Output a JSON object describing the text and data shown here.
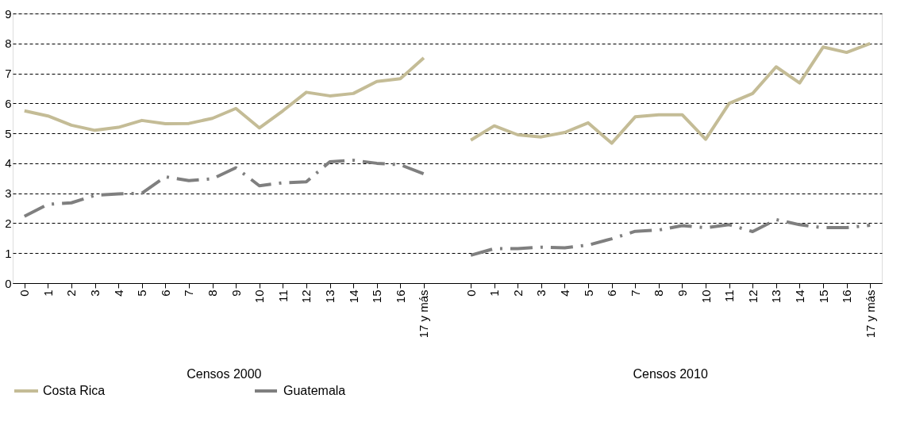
{
  "chart_data": {
    "type": "line",
    "categories": [
      "0",
      "1",
      "2",
      "3",
      "4",
      "5",
      "6",
      "7",
      "8",
      "9",
      "10",
      "11",
      "12",
      "13",
      "14",
      "15",
      "16",
      "17 y más",
      null,
      "0",
      "1",
      "2",
      "3",
      "4",
      "5",
      "6",
      "7",
      "8",
      "9",
      "10",
      "11",
      "12",
      "13",
      "14",
      "15",
      "16",
      "17 y más"
    ],
    "series": [
      {
        "name": "Costa Rica",
        "color": "#c4bc96",
        "line_style": "solid",
        "values": [
          5.75,
          5.58,
          5.27,
          5.1,
          5.2,
          5.43,
          5.32,
          5.33,
          5.5,
          5.83,
          5.18,
          5.75,
          6.37,
          6.25,
          6.33,
          6.73,
          6.82,
          7.52,
          null,
          4.77,
          5.25,
          4.95,
          4.88,
          5.03,
          5.35,
          4.67,
          5.55,
          5.62,
          5.62,
          4.8,
          6.0,
          6.33,
          7.22,
          6.68,
          7.88,
          7.7,
          8.0
        ]
      },
      {
        "name": "Guatemala",
        "color": "#7f7f7f",
        "line_style": "dashed",
        "values": [
          2.23,
          2.63,
          2.68,
          2.93,
          2.98,
          3.0,
          3.55,
          3.42,
          3.48,
          3.85,
          3.25,
          3.35,
          3.38,
          4.05,
          4.1,
          4.0,
          3.95,
          3.65,
          null,
          0.93,
          1.15,
          1.15,
          1.2,
          1.18,
          1.27,
          1.48,
          1.73,
          1.77,
          1.92,
          1.85,
          1.95,
          1.72,
          2.12,
          1.95,
          1.85,
          1.85,
          1.93
        ]
      }
    ],
    "annotations": [
      "Censos 2000",
      "Censos 2010"
    ],
    "ylim": [
      0,
      9
    ],
    "yticks": [
      0,
      1,
      2,
      3,
      4,
      5,
      6,
      7,
      8,
      9
    ],
    "grid": "y",
    "legend": "bottom",
    "marker": "none"
  }
}
